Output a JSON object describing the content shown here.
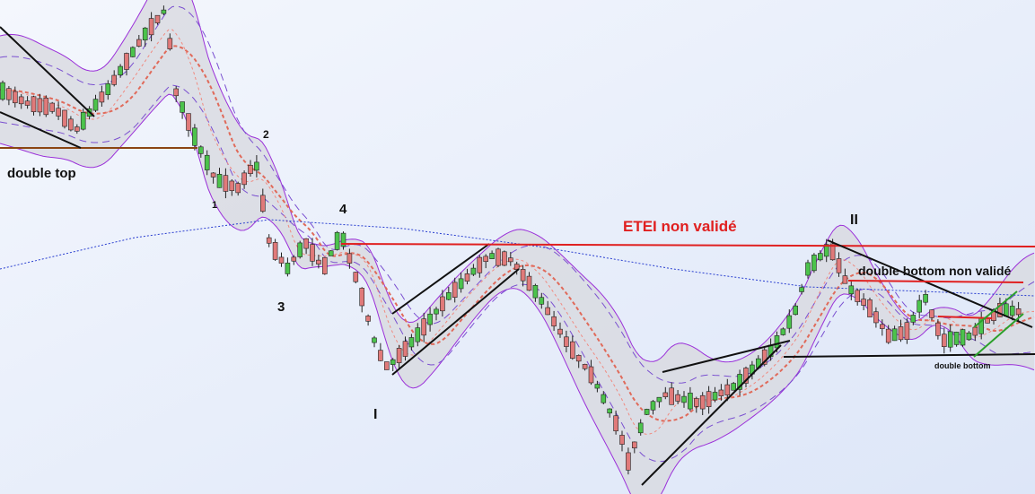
{
  "annotations": {
    "double_top": "double top",
    "wave_1": "1",
    "wave_2": "2",
    "wave_3": "3",
    "wave_4": "4",
    "wave_I": "I",
    "wave_II": "II",
    "etei": "ETEI non validé",
    "double_bottom_nv": "double bottom non validé",
    "double_bottom": "double bottom"
  }
}
